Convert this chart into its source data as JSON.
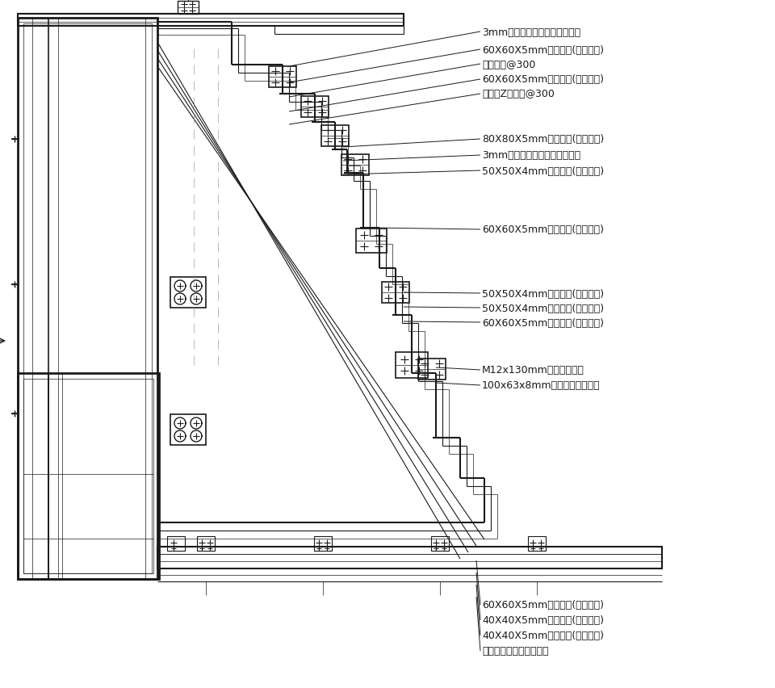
{
  "bg": "#ffffff",
  "lc": "#1a1a1a",
  "annotations": [
    [
      595,
      813,
      "3mm厚压花铝单板（氟碳喷涂）"
    ],
    [
      595,
      791,
      "60X60X5mm厚方钢管(热浸镀锌)"
    ],
    [
      595,
      773,
      "抽芯铆钉@300"
    ],
    [
      595,
      754,
      "60X60X5mm厚方钢管(热浸镀锌)"
    ],
    [
      595,
      736,
      "铝合金Z形角码@300"
    ],
    [
      595,
      680,
      "80X80X5mm厚方钢管(热浸镀锌)"
    ],
    [
      595,
      660,
      "3mm厚压花铝单板（氟碳喷涂）"
    ],
    [
      595,
      641,
      "50X50X4mm厚方钢管(热浸镀锌)"
    ],
    [
      595,
      568,
      "60X60X5mm厚方钢管(热浸镀锌)"
    ],
    [
      595,
      489,
      "50X50X4mm厚方钢管(热浸镀锌)"
    ],
    [
      595,
      471,
      "50X50X4mm厚方钢管(热浸镀锌)"
    ],
    [
      595,
      453,
      "60X60X5mm厚方钢管(热浸镀锌)"
    ],
    [
      595,
      394,
      "M12x130mm不锈钢螺栓组"
    ],
    [
      595,
      375,
      "100x63x8mm热浸镀锌钢连接件"
    ],
    [
      595,
      103,
      "60X60X5mm厚方钢管(热浸镀锌)"
    ],
    [
      595,
      84,
      "40X40X5mm厚方钢管(氟碳喷涂)"
    ],
    [
      595,
      65,
      "40X40X5mm厚方钢管(氟碳喷涂)"
    ],
    [
      595,
      46,
      "铝合金嵌条（氟碳喷涂）"
    ]
  ],
  "fontsize": 9.0
}
